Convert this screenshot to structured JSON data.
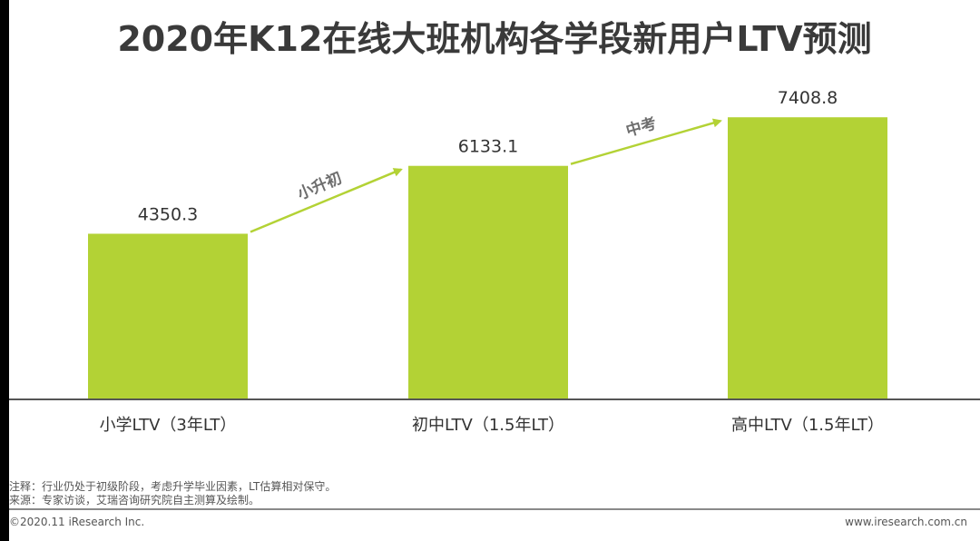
{
  "title": "2020年K12在线大班机构各学段新用户LTV预测",
  "colors": {
    "bar": "#b3d235",
    "arrow": "#b3d235",
    "axis": "#555555",
    "text": "#333333"
  },
  "chart_data": {
    "type": "bar",
    "categories": [
      "小学LTV（3年LT）",
      "初中LTV（1.5年LT）",
      "高中LTV（1.5年LT）"
    ],
    "values": [
      4350.3,
      6133.1,
      7408.8
    ],
    "data_labels": [
      "4350.3",
      "6133.1",
      "7408.8"
    ],
    "ylim": [
      0,
      8000
    ],
    "grid": false,
    "transitions": [
      {
        "from": 0,
        "to": 1,
        "label": "小升初"
      },
      {
        "from": 1,
        "to": 2,
        "label": "中考"
      }
    ]
  },
  "notes": {
    "note": "注释：行业仍处于初级阶段，考虑升学毕业因素，LT估算相对保守。",
    "source": "来源：专家访谈，艾瑞咨询研究院自主测算及绘制。"
  },
  "footer": {
    "copyright": "©2020.11 iResearch Inc.",
    "website": "www.iresearch.com.cn"
  }
}
